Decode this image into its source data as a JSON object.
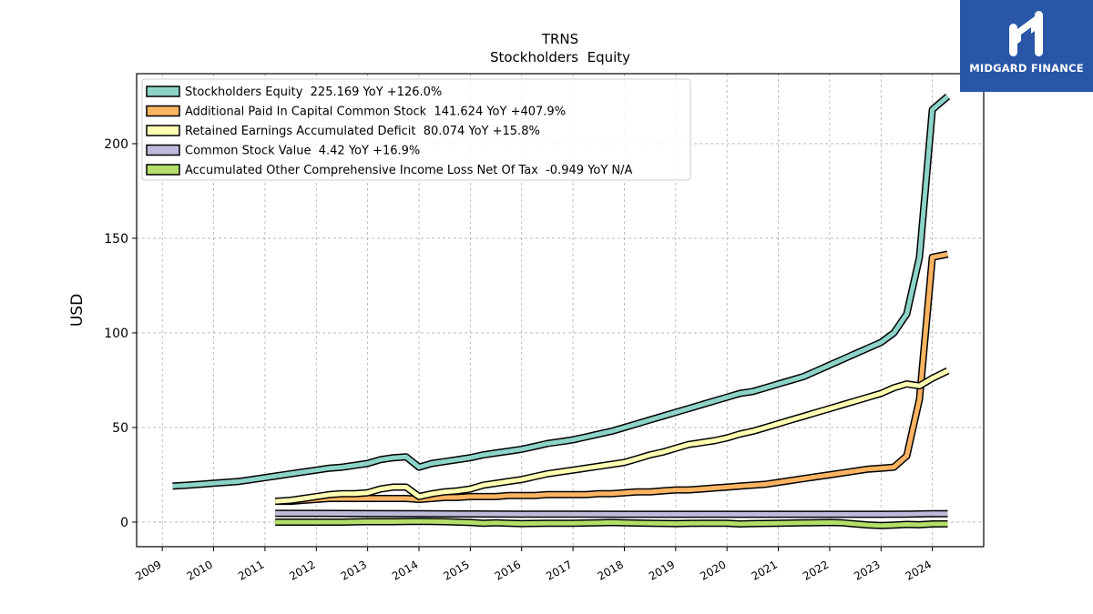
{
  "chart_data": {
    "type": "line",
    "title": "TRNS",
    "subtitle": "Stockholders  Equity",
    "xlabel": "",
    "ylabel": "USD",
    "xlim": [
      2008.5,
      2025.0
    ],
    "ylim": [
      -13,
      237
    ],
    "x_ticks": [
      "2009",
      "2010",
      "2011",
      "2012",
      "2013",
      "2014",
      "2015",
      "2016",
      "2017",
      "2018",
      "2019",
      "2020",
      "2021",
      "2022",
      "2023",
      "2024"
    ],
    "y_ticks": [
      "0",
      "50",
      "100",
      "150",
      "200"
    ],
    "grid": true,
    "legend_position": "top-left",
    "series": [
      {
        "name": "Stockholders Equity  225.169 YoY +126.0%",
        "color": "#8dd3c7",
        "x": [
          2009.2,
          2009.5,
          2009.75,
          2010.0,
          2010.25,
          2010.5,
          2010.75,
          2011.0,
          2011.25,
          2011.5,
          2011.75,
          2012.0,
          2012.25,
          2012.5,
          2012.75,
          2013.0,
          2013.25,
          2013.5,
          2013.75,
          2014.0,
          2014.25,
          2014.5,
          2014.75,
          2015.0,
          2015.25,
          2015.5,
          2015.75,
          2016.0,
          2016.25,
          2016.5,
          2016.75,
          2017.0,
          2017.25,
          2017.5,
          2017.75,
          2018.0,
          2018.25,
          2018.5,
          2018.75,
          2019.0,
          2019.25,
          2019.5,
          2019.75,
          2020.0,
          2020.25,
          2020.5,
          2020.75,
          2021.0,
          2021.25,
          2021.5,
          2021.75,
          2022.0,
          2022.25,
          2022.5,
          2022.75,
          2023.0,
          2023.25,
          2023.5,
          2023.75,
          2024.0,
          2024.3
        ],
        "values": [
          19,
          19.5,
          20,
          20.5,
          21,
          21.5,
          22.5,
          23.5,
          24.5,
          25.5,
          26.5,
          27.5,
          28.5,
          29,
          30,
          31,
          33,
          34,
          34.5,
          29,
          31,
          32,
          33,
          34,
          35.5,
          36.5,
          37.5,
          38.5,
          40,
          41.5,
          42.5,
          43.5,
          45,
          46.5,
          48,
          50,
          52,
          54,
          56,
          58,
          60,
          62,
          64,
          66,
          68,
          69,
          71,
          73,
          75,
          77,
          80,
          83,
          86,
          89,
          92,
          95,
          100,
          110,
          140,
          218,
          225
        ]
      },
      {
        "name": "Additional Paid In Capital Common Stock  141.624 YoY +407.9%",
        "color": "#fdb462",
        "x": [
          2011.2,
          2011.5,
          2011.75,
          2012.0,
          2012.25,
          2012.5,
          2012.75,
          2013.0,
          2013.25,
          2013.5,
          2013.75,
          2014.0,
          2014.25,
          2014.5,
          2014.75,
          2015.0,
          2015.25,
          2015.5,
          2015.75,
          2016.0,
          2016.25,
          2016.5,
          2016.75,
          2017.0,
          2017.25,
          2017.5,
          2017.75,
          2018.0,
          2018.25,
          2018.5,
          2018.75,
          2019.0,
          2019.25,
          2019.5,
          2019.75,
          2020.0,
          2020.25,
          2020.5,
          2020.75,
          2021.0,
          2021.25,
          2021.5,
          2021.75,
          2022.0,
          2022.25,
          2022.5,
          2022.75,
          2023.0,
          2023.25,
          2023.5,
          2023.75,
          2024.0,
          2024.3
        ],
        "values": [
          11,
          11,
          11.5,
          12,
          12.5,
          12.5,
          12.5,
          12.5,
          12.5,
          12.5,
          12.5,
          12,
          12.5,
          13,
          13,
          13.5,
          13.5,
          13.5,
          14,
          14,
          14,
          14.5,
          14.5,
          14.5,
          14.5,
          15,
          15,
          15.5,
          16,
          16,
          16.5,
          17,
          17,
          17.5,
          18,
          18.5,
          19,
          19.5,
          20,
          21,
          22,
          23,
          24,
          25,
          26,
          27,
          28,
          28.5,
          29,
          35,
          65,
          140,
          141.6
        ]
      },
      {
        "name": "Retained Earnings Accumulated Deficit  80.074 YoY +15.8%",
        "color": "#ffffb3",
        "x": [
          2011.2,
          2011.5,
          2011.75,
          2012.0,
          2012.25,
          2012.5,
          2012.75,
          2013.0,
          2013.25,
          2013.5,
          2013.75,
          2014.0,
          2014.25,
          2014.5,
          2014.75,
          2015.0,
          2015.25,
          2015.5,
          2015.75,
          2016.0,
          2016.25,
          2016.5,
          2016.75,
          2017.0,
          2017.25,
          2017.5,
          2017.75,
          2018.0,
          2018.25,
          2018.5,
          2018.75,
          2019.0,
          2019.25,
          2019.5,
          2019.75,
          2020.0,
          2020.25,
          2020.5,
          2020.75,
          2021.0,
          2021.25,
          2021.5,
          2021.75,
          2022.0,
          2022.25,
          2022.5,
          2022.75,
          2023.0,
          2023.25,
          2023.5,
          2023.75,
          2024.0,
          2024.3
        ],
        "values": [
          11,
          11.5,
          12.5,
          13.5,
          14.5,
          15,
          15,
          15.5,
          17.5,
          18.5,
          18.5,
          13.5,
          15,
          16,
          16.5,
          17.5,
          19.5,
          20.5,
          21.5,
          22.5,
          24,
          25.5,
          26.5,
          27.5,
          28.5,
          29.5,
          30.5,
          31.5,
          33.5,
          35.5,
          37,
          39,
          41,
          42,
          43,
          44.5,
          46.5,
          48,
          50,
          52,
          54,
          56,
          58,
          60,
          62,
          64,
          66,
          68,
          71,
          73,
          72,
          76,
          80
        ]
      },
      {
        "name": "Common Stock Value  4.42 YoY +16.9%",
        "color": "#bebada",
        "x": [
          2011.2,
          2012.0,
          2013.0,
          2014.0,
          2015.0,
          2016.0,
          2017.0,
          2018.0,
          2019.0,
          2020.0,
          2021.0,
          2022.0,
          2023.0,
          2023.5,
          2024.0,
          2024.3
        ],
        "values": [
          4.6,
          4.6,
          4.5,
          4.4,
          4.3,
          4.2,
          4.2,
          4.1,
          4.1,
          4.1,
          4.1,
          4.1,
          4.1,
          4.2,
          4.4,
          4.42
        ]
      },
      {
        "name": "Accumulated Other Comprehensive Income Loss Net Of Tax  -0.949 YoY N/A",
        "color": "#b3de69",
        "x": [
          2011.2,
          2011.75,
          2012.5,
          2013.0,
          2013.5,
          2014.0,
          2014.5,
          2015.0,
          2015.25,
          2015.5,
          2015.75,
          2016.0,
          2016.5,
          2017.0,
          2017.5,
          2017.75,
          2018.0,
          2018.5,
          2019.0,
          2019.5,
          2020.0,
          2020.25,
          2020.5,
          2021.0,
          2021.5,
          2022.0,
          2022.25,
          2022.5,
          2022.75,
          2023.0,
          2023.25,
          2023.5,
          2023.75,
          2024.0,
          2024.3
        ],
        "values": [
          0,
          0,
          0,
          0.2,
          0.2,
          0.4,
          0.2,
          -0.2,
          -0.6,
          -0.4,
          -0.6,
          -0.8,
          -0.6,
          -0.6,
          -0.4,
          -0.2,
          -0.4,
          -0.6,
          -0.8,
          -0.6,
          -0.6,
          -1.0,
          -0.8,
          -0.6,
          -0.4,
          -0.2,
          -0.4,
          -1.0,
          -1.5,
          -1.8,
          -1.6,
          -1.2,
          -1.4,
          -1.0,
          -0.95
        ]
      }
    ]
  },
  "logo": {
    "text": "MIDGARD FINANCE"
  }
}
